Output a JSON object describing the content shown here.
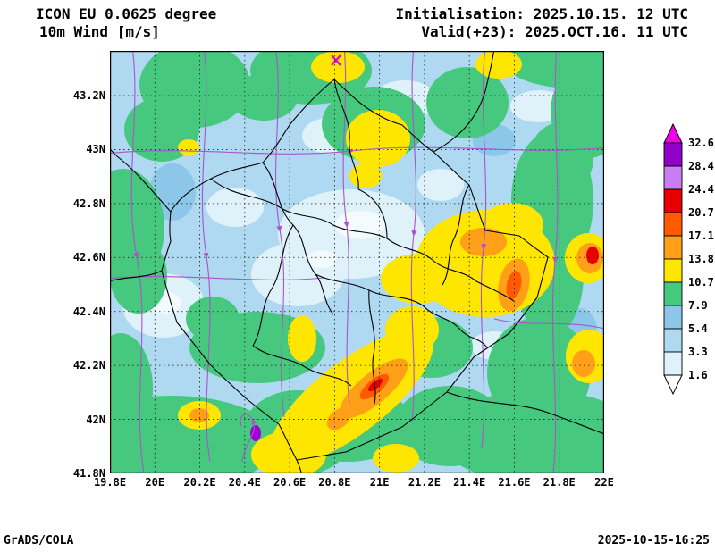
{
  "header": {
    "model": "ICON EU 0.0625 degree",
    "field": "10m Wind [m/s]",
    "initialisation": "Initialisation: 2025.10.15. 12 UTC",
    "valid": "Valid(+23): 2025.OCT.16. 11 UTC"
  },
  "footer": {
    "credit": "GrADS/COLA",
    "created": "2025-10-15-16:25"
  },
  "chart_data": {
    "type": "heatmap",
    "title": "ICON EU 0.0625 degree 10m Wind [m/s]",
    "subtitle": "Initialisation: 2025.10.15. 12 UTC | Valid(+23): 2025.OCT.16. 11 UTC",
    "xlabel": "",
    "ylabel": "",
    "xlim": [
      19.8,
      22.0
    ],
    "ylim": [
      41.8,
      43.37
    ],
    "x_ticks": [
      "19.8E",
      "20E",
      "20.2E",
      "20.4E",
      "20.6E",
      "20.8E",
      "21E",
      "21.2E",
      "21.4E",
      "21.6E",
      "21.8E",
      "22E"
    ],
    "y_ticks": [
      "43.2N",
      "43N",
      "42.8N",
      "42.6N",
      "42.4N",
      "42.2N",
      "42N",
      "41.8N"
    ],
    "grid": "dotted",
    "legend_position": "right",
    "colorbar": {
      "units": "m/s",
      "levels": [
        1.6,
        3.3,
        5.4,
        7.9,
        10.7,
        13.8,
        17.1,
        20.7,
        24.4,
        28.4,
        32.6
      ],
      "colors_low_to_high": [
        "#ffffff",
        "#dff2fa",
        "#aed9f1",
        "#8cc6e9",
        "#46c87f",
        "#ffe600",
        "#ffa018",
        "#ff5a00",
        "#e60000",
        "#c87df0",
        "#9000c8",
        "#f000e6"
      ]
    },
    "overlays": [
      "wind streamlines",
      "country and municipality borders"
    ],
    "field_summary": "Shaded 10 m wind speed over the Kosovo region: mostly 1.6-7.9 m/s (blues) in central valleys, 7.9-10.7 m/s (green) patches, 10.7-17.1 m/s (yellow/orange) bands SW of Pristina and east near 21.5E 42.5N, small >17 m/s (red) spot at the eastern edge and an isolated >24 m/s (purple) point near 20.45E 41.95N"
  }
}
